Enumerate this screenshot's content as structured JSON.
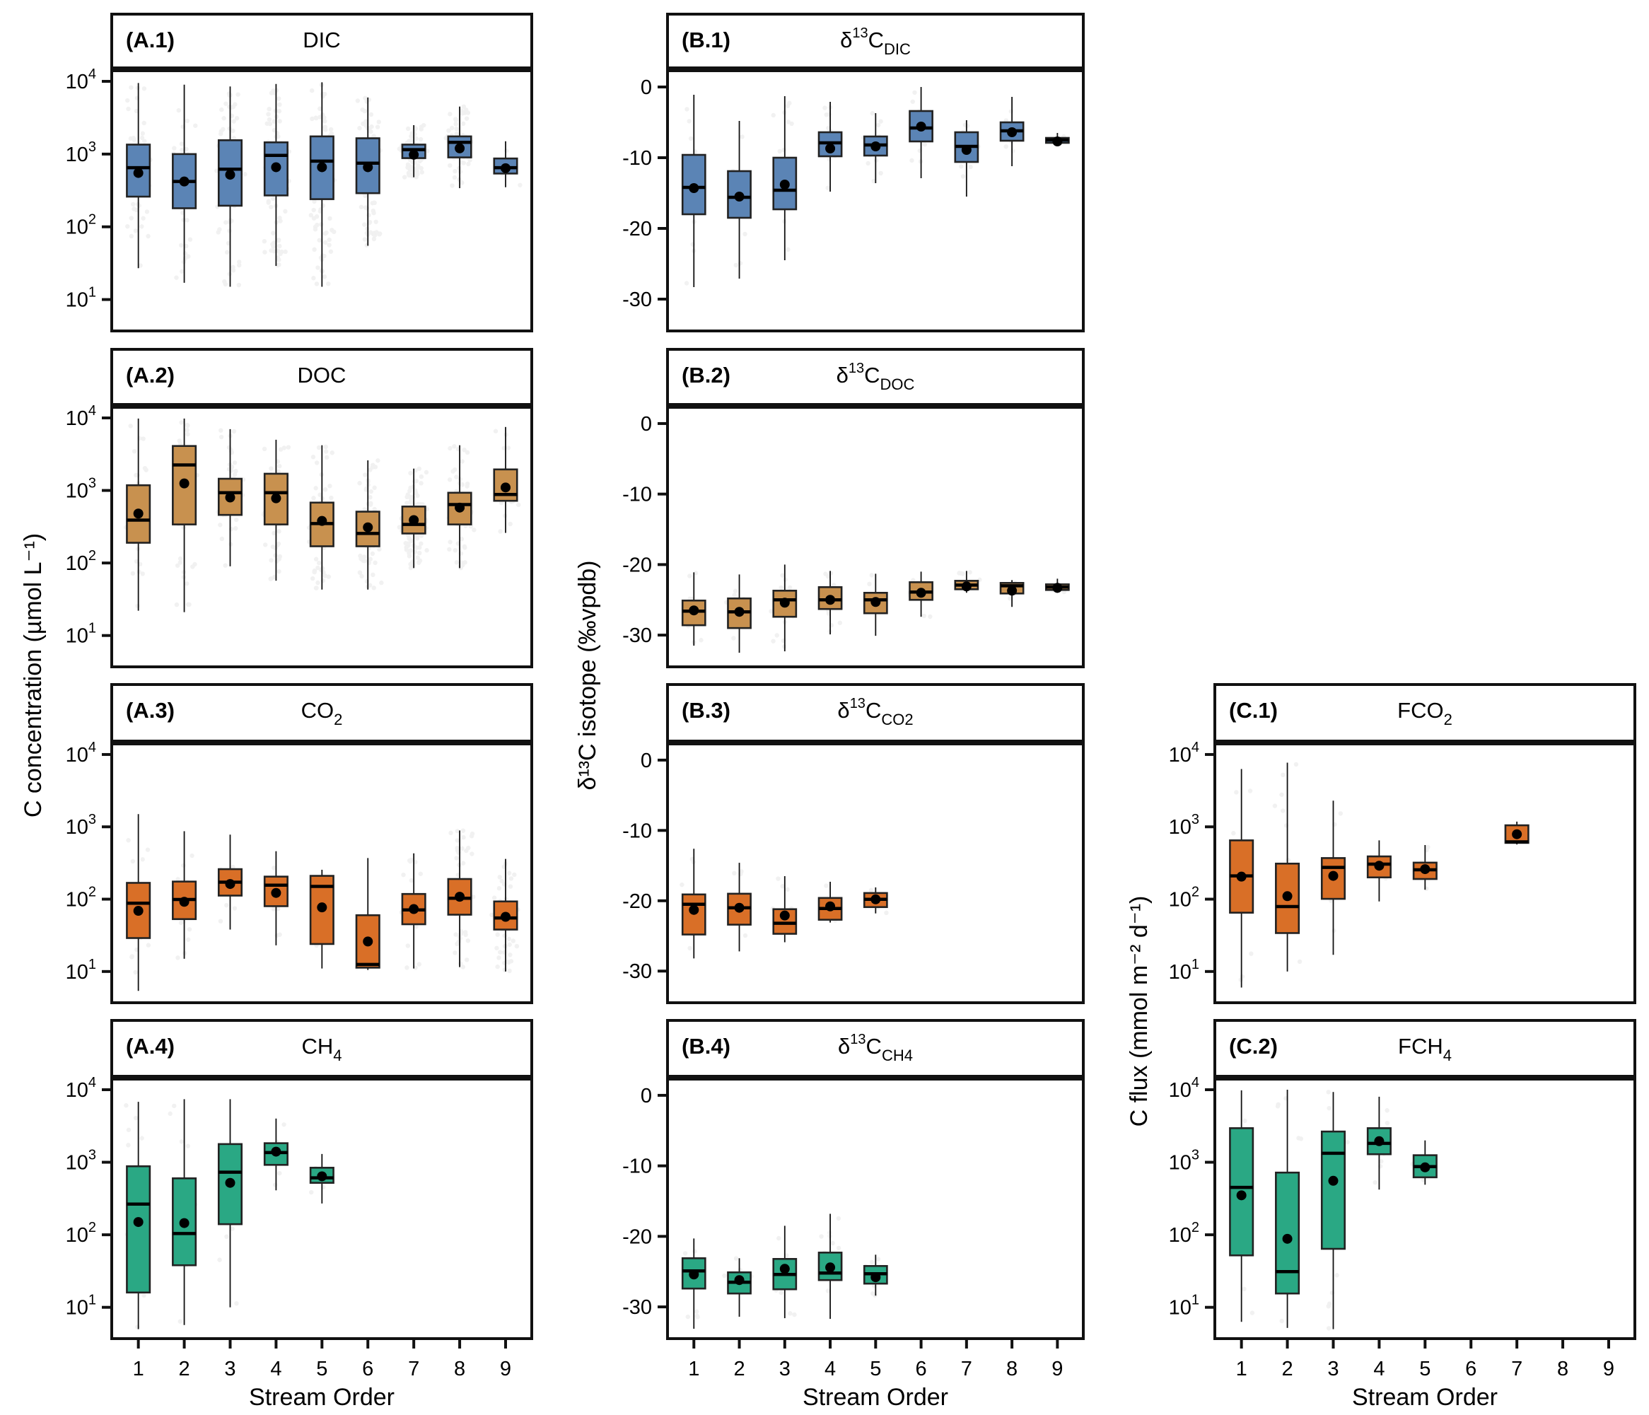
{
  "figure": {
    "y_label_concentration": "C concentration (µmol L⁻¹)",
    "y_label_isotope": "δ¹³C isotope (‰vpdb)",
    "y_label_flux": "C flux (mmol m⁻² d⁻¹)",
    "x_label": "Stream Order"
  },
  "colors": {
    "DIC": "#5b84b5",
    "DOC": "#c8914f",
    "gas_orange": "#d96f27",
    "methane_green": "#2aa884",
    "median": "#000000",
    "mean_dot": "#000000",
    "jitter": "#555555"
  },
  "chart_data": [
    {
      "id": "A.1",
      "type": "box",
      "tag": "(A.1)",
      "title": "DIC",
      "title_sub": "",
      "title_sup": "",
      "scale": "log",
      "ylim": [
        3.7,
        14000
      ],
      "yticks": [
        10,
        100,
        1000,
        10000
      ],
      "color_key": "DIC",
      "categories": [
        1,
        2,
        3,
        4,
        5,
        6,
        7,
        8,
        9
      ],
      "jitter_density": [
        0.25,
        0.25,
        0.45,
        0.55,
        0.55,
        0.5,
        0.9,
        0.4,
        0.08
      ],
      "boxes": [
        {
          "x": 1,
          "lo": 27,
          "q1": 260,
          "med": 650,
          "q3": 1350,
          "hi": 9500,
          "mean": 550
        },
        {
          "x": 2,
          "lo": 17,
          "q1": 180,
          "med": 420,
          "q3": 1000,
          "hi": 9000,
          "mean": 420
        },
        {
          "x": 3,
          "lo": 15,
          "q1": 195,
          "med": 620,
          "q3": 1550,
          "hi": 8500,
          "mean": 520
        },
        {
          "x": 4,
          "lo": 29,
          "q1": 270,
          "med": 960,
          "q3": 1450,
          "hi": 9200,
          "mean": 660
        },
        {
          "x": 5,
          "lo": 15,
          "q1": 240,
          "med": 800,
          "q3": 1750,
          "hi": 9700,
          "mean": 660
        },
        {
          "x": 6,
          "lo": 55,
          "q1": 290,
          "med": 750,
          "q3": 1650,
          "hi": 6000,
          "mean": 660
        },
        {
          "x": 7,
          "lo": 480,
          "q1": 880,
          "med": 1150,
          "q3": 1350,
          "hi": 2500,
          "mean": 980
        },
        {
          "x": 8,
          "lo": 340,
          "q1": 900,
          "med": 1450,
          "q3": 1750,
          "hi": 4500,
          "mean": 1200
        },
        {
          "x": 9,
          "lo": 350,
          "q1": 540,
          "med": 650,
          "q3": 870,
          "hi": 1500,
          "mean": 640
        }
      ]
    },
    {
      "id": "B.1",
      "type": "box",
      "tag": "(B.1)",
      "title": "δ",
      "title_sup": "13",
      "title_main": "C",
      "title_sub": "DIC",
      "scale": "linear",
      "ylim": [
        -34.5,
        2.3
      ],
      "yticks": [
        0,
        -10,
        -20,
        -30
      ],
      "color_key": "DIC",
      "categories": [
        1,
        2,
        3,
        4,
        5,
        6,
        7,
        8,
        9
      ],
      "jitter_density": [
        0.08,
        0.08,
        0.12,
        0.08,
        0.06,
        0.06,
        0.06,
        0.08,
        0.02
      ],
      "boxes": [
        {
          "x": 1,
          "lo": -28.3,
          "q1": -18.0,
          "med": -14.2,
          "q3": -9.6,
          "hi": -1.1,
          "mean": -14.3
        },
        {
          "x": 2,
          "lo": -27.1,
          "q1": -18.5,
          "med": -15.6,
          "q3": -11.9,
          "hi": -4.8,
          "mean": -15.5
        },
        {
          "x": 3,
          "lo": -24.5,
          "q1": -17.3,
          "med": -14.6,
          "q3": -10.0,
          "hi": -1.3,
          "mean": -13.8
        },
        {
          "x": 4,
          "lo": -14.8,
          "q1": -9.8,
          "med": -7.9,
          "q3": -6.4,
          "hi": -2.1,
          "mean": -8.7
        },
        {
          "x": 5,
          "lo": -13.6,
          "q1": -9.7,
          "med": -8.2,
          "q3": -7.0,
          "hi": -3.7,
          "mean": -8.4
        },
        {
          "x": 6,
          "lo": -12.9,
          "q1": -7.7,
          "med": -5.8,
          "q3": -3.4,
          "hi": 0.0,
          "mean": -5.6
        },
        {
          "x": 7,
          "lo": -15.5,
          "q1": -10.6,
          "med": -8.4,
          "q3": -6.4,
          "hi": -4.7,
          "mean": -8.9
        },
        {
          "x": 8,
          "lo": -11.2,
          "q1": -7.6,
          "med": -6.2,
          "q3": -5.0,
          "hi": -1.4,
          "mean": -6.4
        },
        {
          "x": 9,
          "lo": -8.2,
          "q1": -7.9,
          "med": -7.5,
          "q3": -7.2,
          "hi": -6.5,
          "mean": -7.7
        }
      ]
    },
    {
      "id": "A.2",
      "type": "box",
      "tag": "(A.2)",
      "title": "DOC",
      "title_sub": "",
      "title_sup": "",
      "scale": "log",
      "ylim": [
        3.7,
        14000
      ],
      "yticks": [
        10,
        100,
        1000,
        10000
      ],
      "color_key": "DOC",
      "categories": [
        1,
        2,
        3,
        4,
        5,
        6,
        7,
        8,
        9
      ],
      "jitter_density": [
        0.2,
        0.3,
        0.35,
        0.4,
        0.45,
        0.55,
        0.75,
        0.45,
        0.1
      ],
      "boxes": [
        {
          "x": 1,
          "lo": 22,
          "q1": 190,
          "med": 390,
          "q3": 1180,
          "hi": 9800,
          "mean": 480
        },
        {
          "x": 2,
          "lo": 21,
          "q1": 340,
          "med": 2250,
          "q3": 4100,
          "hi": 9800,
          "mean": 1250
        },
        {
          "x": 3,
          "lo": 90,
          "q1": 460,
          "med": 930,
          "q3": 1450,
          "hi": 7000,
          "mean": 800
        },
        {
          "x": 4,
          "lo": 57,
          "q1": 340,
          "med": 930,
          "q3": 1700,
          "hi": 5000,
          "mean": 780
        },
        {
          "x": 5,
          "lo": 43,
          "q1": 170,
          "med": 350,
          "q3": 680,
          "hi": 4200,
          "mean": 380
        },
        {
          "x": 6,
          "lo": 43,
          "q1": 170,
          "med": 255,
          "q3": 510,
          "hi": 2600,
          "mean": 310
        },
        {
          "x": 7,
          "lo": 85,
          "q1": 255,
          "med": 340,
          "q3": 600,
          "hi": 2000,
          "mean": 390
        },
        {
          "x": 8,
          "lo": 85,
          "q1": 340,
          "med": 640,
          "q3": 930,
          "hi": 4200,
          "mean": 580
        },
        {
          "x": 9,
          "lo": 260,
          "q1": 720,
          "med": 880,
          "q3": 1950,
          "hi": 7500,
          "mean": 1100
        }
      ]
    },
    {
      "id": "B.2",
      "type": "box",
      "tag": "(B.2)",
      "title": "δ",
      "title_sup": "13",
      "title_main": "C",
      "title_sub": "DOC",
      "scale": "linear",
      "ylim": [
        -34.5,
        2.3
      ],
      "yticks": [
        0,
        -10,
        -20,
        -30
      ],
      "color_key": "DOC",
      "categories": [
        1,
        2,
        3,
        4,
        5,
        6,
        7,
        8,
        9
      ],
      "jitter_density": [
        0.08,
        0.08,
        0.1,
        0.1,
        0.08,
        0.05,
        0.05,
        0.05,
        0.03
      ],
      "boxes": [
        {
          "x": 1,
          "lo": -31.5,
          "q1": -28.6,
          "med": -26.6,
          "q3": -25.1,
          "hi": -21.1,
          "mean": -26.5
        },
        {
          "x": 2,
          "lo": -32.5,
          "q1": -29.0,
          "med": -26.7,
          "q3": -24.8,
          "hi": -21.4,
          "mean": -26.7
        },
        {
          "x": 3,
          "lo": -32.3,
          "q1": -27.4,
          "med": -25.0,
          "q3": -23.7,
          "hi": -20.0,
          "mean": -25.4
        },
        {
          "x": 4,
          "lo": -29.9,
          "q1": -26.3,
          "med": -25.0,
          "q3": -23.2,
          "hi": -20.9,
          "mean": -25.0
        },
        {
          "x": 5,
          "lo": -30.1,
          "q1": -26.9,
          "med": -25.0,
          "q3": -24.0,
          "hi": -21.3,
          "mean": -25.3
        },
        {
          "x": 6,
          "lo": -27.4,
          "q1": -25.0,
          "med": -23.9,
          "q3": -22.5,
          "hi": -21.0,
          "mean": -24.0
        },
        {
          "x": 7,
          "lo": -24.0,
          "q1": -23.5,
          "med": -22.9,
          "q3": -22.3,
          "hi": -20.9,
          "mean": -23.1
        },
        {
          "x": 8,
          "lo": -26.0,
          "q1": -24.1,
          "med": -23.0,
          "q3": -22.6,
          "hi": -22.2,
          "mean": -23.7
        },
        {
          "x": 9,
          "lo": -24.0,
          "q1": -23.6,
          "med": -23.2,
          "q3": -22.8,
          "hi": -22.0,
          "mean": -23.3
        }
      ]
    },
    {
      "id": "A.3",
      "type": "box",
      "tag": "(A.3)",
      "title": "CO",
      "title_sub": "2",
      "title_sup": "",
      "scale": "log",
      "ylim": [
        3.7,
        14000
      ],
      "yticks": [
        10,
        100,
        1000,
        10000
      ],
      "color_key": "gas_orange",
      "categories": [
        1,
        2,
        3,
        4,
        5,
        6,
        7,
        8,
        9
      ],
      "jitter_density": [
        0.1,
        0.12,
        0.1,
        0.08,
        0.08,
        0.02,
        0.15,
        0.45,
        0.4
      ],
      "boxes": [
        {
          "x": 1,
          "lo": 5.4,
          "q1": 29,
          "med": 88,
          "q3": 168,
          "hi": 1500,
          "mean": 69
        },
        {
          "x": 2,
          "lo": 15,
          "q1": 53,
          "med": 99,
          "q3": 175,
          "hi": 870,
          "mean": 92
        },
        {
          "x": 3,
          "lo": 38,
          "q1": 112,
          "med": 172,
          "q3": 260,
          "hi": 780,
          "mean": 162
        },
        {
          "x": 4,
          "lo": 23,
          "q1": 80,
          "med": 156,
          "q3": 205,
          "hi": 460,
          "mean": 122
        },
        {
          "x": 5,
          "lo": 11,
          "q1": 24,
          "med": 150,
          "q3": 210,
          "hi": 255,
          "mean": 77
        },
        {
          "x": 6,
          "lo": 10.5,
          "q1": 11.3,
          "med": 12.5,
          "q3": 60,
          "hi": 370,
          "mean": 26
        },
        {
          "x": 7,
          "lo": 11,
          "q1": 45,
          "med": 71,
          "q3": 118,
          "hi": 430,
          "mean": 73
        },
        {
          "x": 8,
          "lo": 11.5,
          "q1": 61,
          "med": 103,
          "q3": 190,
          "hi": 890,
          "mean": 108
        },
        {
          "x": 9,
          "lo": 10,
          "q1": 38,
          "med": 55,
          "q3": 93,
          "hi": 360,
          "mean": 57
        }
      ]
    },
    {
      "id": "B.3",
      "type": "box",
      "tag": "(B.3)",
      "title": "δ",
      "title_sup": "13",
      "title_main": "C",
      "title_sub": "CO2",
      "scale": "linear",
      "ylim": [
        -34.5,
        2.3
      ],
      "yticks": [
        0,
        -10,
        -20,
        -30
      ],
      "color_key": "gas_orange",
      "categories": [
        1,
        2,
        3,
        4,
        5,
        6,
        7,
        8,
        9
      ],
      "jitter_density": [
        0.08,
        0.06,
        0.05,
        0.04,
        0.03,
        0,
        0,
        0,
        0
      ],
      "boxes": [
        {
          "x": 1,
          "lo": -28.2,
          "q1": -24.8,
          "med": -20.5,
          "q3": -19.1,
          "hi": -12.6,
          "mean": -21.3
        },
        {
          "x": 2,
          "lo": -27.2,
          "q1": -23.4,
          "med": -21.0,
          "q3": -19.0,
          "hi": -14.6,
          "mean": -21.0
        },
        {
          "x": 3,
          "lo": -25.9,
          "q1": -24.7,
          "med": -23.2,
          "q3": -21.2,
          "hi": -16.5,
          "mean": -22.1
        },
        {
          "x": 4,
          "lo": -23.1,
          "q1": -22.7,
          "med": -21.1,
          "q3": -19.6,
          "hi": -17.3,
          "mean": -20.8
        },
        {
          "x": 5,
          "lo": -21.8,
          "q1": -20.9,
          "med": -19.8,
          "q3": -18.9,
          "hi": -18.1,
          "mean": -19.8
        }
      ]
    },
    {
      "id": "C.1",
      "type": "box",
      "tag": "(C.1)",
      "title": "FCO",
      "title_sub": "2",
      "title_sup": "",
      "scale": "log",
      "ylim": [
        3.7,
        14000
      ],
      "yticks": [
        10,
        100,
        1000,
        10000
      ],
      "color_key": "gas_orange",
      "categories": [
        1,
        2,
        3,
        4,
        5,
        6,
        7,
        8,
        9
      ],
      "jitter_density": [
        0.1,
        0.1,
        0.1,
        0.06,
        0.05,
        0,
        0.02,
        0,
        0
      ],
      "boxes": [
        {
          "x": 1,
          "lo": 6,
          "q1": 65,
          "med": 210,
          "q3": 650,
          "hi": 6300,
          "mean": 205
        },
        {
          "x": 2,
          "lo": 10,
          "q1": 34,
          "med": 79,
          "q3": 310,
          "hi": 7700,
          "mean": 110
        },
        {
          "x": 3,
          "lo": 17,
          "q1": 101,
          "med": 275,
          "q3": 370,
          "hi": 2300,
          "mean": 210
        },
        {
          "x": 4,
          "lo": 93,
          "q1": 200,
          "med": 305,
          "q3": 390,
          "hi": 650,
          "mean": 290
        },
        {
          "x": 5,
          "lo": 135,
          "q1": 190,
          "med": 255,
          "q3": 320,
          "hi": 560,
          "mean": 260
        },
        {
          "x": 7,
          "lo": 570,
          "q1": 600,
          "med": 620,
          "q3": 1050,
          "hi": 1180,
          "mean": 790
        }
      ]
    },
    {
      "id": "A.4",
      "type": "box",
      "tag": "(A.4)",
      "title": "CH",
      "title_sub": "4",
      "title_sup": "",
      "scale": "log",
      "ylim": [
        3.7,
        14000
      ],
      "yticks": [
        10,
        100,
        1000,
        10000
      ],
      "color_key": "methane_green",
      "categories": [
        1,
        2,
        3,
        4,
        5,
        6,
        7,
        8,
        9
      ],
      "jitter_density": [
        0.1,
        0.1,
        0.1,
        0.06,
        0.05,
        0,
        0,
        0,
        0
      ],
      "boxes": [
        {
          "x": 1,
          "lo": 5,
          "q1": 16,
          "med": 265,
          "q3": 880,
          "hi": 6800,
          "mean": 150
        },
        {
          "x": 2,
          "lo": 5.7,
          "q1": 38,
          "med": 104,
          "q3": 600,
          "hi": 7400,
          "mean": 145
        },
        {
          "x": 3,
          "lo": 10,
          "q1": 140,
          "med": 730,
          "q3": 1780,
          "hi": 7400,
          "mean": 520
        },
        {
          "x": 4,
          "lo": 410,
          "q1": 920,
          "med": 1360,
          "q3": 1830,
          "hi": 4000,
          "mean": 1400
        },
        {
          "x": 5,
          "lo": 270,
          "q1": 520,
          "med": 610,
          "q3": 840,
          "hi": 1300,
          "mean": 640
        }
      ]
    },
    {
      "id": "B.4",
      "type": "box",
      "tag": "(B.4)",
      "title": "δ",
      "title_sup": "13",
      "title_main": "C",
      "title_sub": "CH4",
      "scale": "linear",
      "ylim": [
        -34.5,
        2.3
      ],
      "yticks": [
        0,
        -10,
        -20,
        -30
      ],
      "color_key": "methane_green",
      "categories": [
        1,
        2,
        3,
        4,
        5,
        6,
        7,
        8,
        9
      ],
      "jitter_density": [
        0.08,
        0.06,
        0.07,
        0.06,
        0.04,
        0,
        0,
        0,
        0
      ],
      "boxes": [
        {
          "x": 1,
          "lo": -33.1,
          "q1": -27.4,
          "med": -24.9,
          "q3": -23.1,
          "hi": -20.3,
          "mean": -25.4
        },
        {
          "x": 2,
          "lo": -31.4,
          "q1": -28.1,
          "med": -26.5,
          "q3": -25.1,
          "hi": -23.1,
          "mean": -26.2
        },
        {
          "x": 3,
          "lo": -31.6,
          "q1": -27.5,
          "med": -25.4,
          "q3": -23.2,
          "hi": -18.5,
          "mean": -24.6
        },
        {
          "x": 4,
          "lo": -31.7,
          "q1": -26.2,
          "med": -25.2,
          "q3": -22.3,
          "hi": -16.8,
          "mean": -24.4
        },
        {
          "x": 5,
          "lo": -28.4,
          "q1": -26.7,
          "med": -25.3,
          "q3": -24.2,
          "hi": -22.6,
          "mean": -25.8
        }
      ]
    },
    {
      "id": "C.2",
      "type": "box",
      "tag": "(C.2)",
      "title": "FCH",
      "title_sub": "4",
      "title_sup": "",
      "scale": "log",
      "ylim": [
        3.7,
        14000
      ],
      "yticks": [
        10,
        100,
        1000,
        10000
      ],
      "color_key": "methane_green",
      "categories": [
        1,
        2,
        3,
        4,
        5,
        6,
        7,
        8,
        9
      ],
      "jitter_density": [
        0.1,
        0.1,
        0.1,
        0.06,
        0.05,
        0,
        0,
        0,
        0
      ],
      "boxes": [
        {
          "x": 1,
          "lo": 6.3,
          "q1": 52,
          "med": 450,
          "q3": 2950,
          "hi": 9800,
          "mean": 350
        },
        {
          "x": 2,
          "lo": 5.2,
          "q1": 15.5,
          "med": 31,
          "q3": 720,
          "hi": 10000,
          "mean": 88
        },
        {
          "x": 3,
          "lo": 5,
          "q1": 64,
          "med": 1330,
          "q3": 2650,
          "hi": 9300,
          "mean": 555
        },
        {
          "x": 4,
          "lo": 420,
          "q1": 1290,
          "med": 1820,
          "q3": 2950,
          "hi": 8000,
          "mean": 1950
        },
        {
          "x": 5,
          "lo": 490,
          "q1": 620,
          "med": 870,
          "q3": 1250,
          "hi": 2000,
          "mean": 850
        }
      ]
    }
  ]
}
